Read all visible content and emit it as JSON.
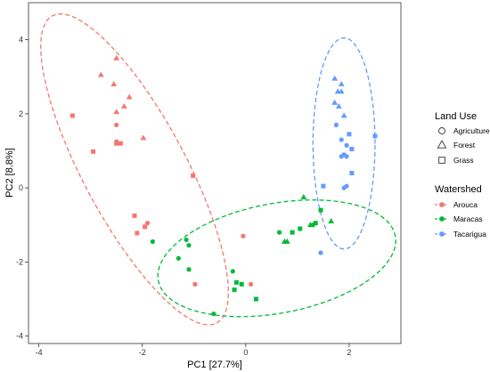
{
  "chart_data": {
    "type": "scatter",
    "title": "",
    "xlabel": "PC1   [27.7%]",
    "ylabel": "PC2   [8.8%]",
    "xlim": [
      -4.2,
      3.0
    ],
    "ylim": [
      -4.2,
      5.0
    ],
    "x_ticks": [
      -4,
      -2,
      0,
      2
    ],
    "y_ticks": [
      -4,
      -2,
      0,
      2,
      4
    ],
    "grid": false,
    "legend_position": "right",
    "legends": [
      {
        "title": "Land Use",
        "entries": [
          {
            "label": "Agriculture",
            "shape": "circle"
          },
          {
            "label": "Forest",
            "shape": "triangle"
          },
          {
            "label": "Grass",
            "shape": "square"
          }
        ]
      },
      {
        "title": "Watershed",
        "entries": [
          {
            "label": "Arouca",
            "color": "#F8766D"
          },
          {
            "label": "Maracas",
            "color": "#00BA38"
          },
          {
            "label": "Tacarigua",
            "color": "#619CFF"
          }
        ]
      }
    ],
    "series": [
      {
        "name": "Arouca",
        "color": "#F8766D",
        "points": [
          {
            "x": -2.5,
            "y": 3.5,
            "shape": "triangle"
          },
          {
            "x": -2.8,
            "y": 3.05,
            "shape": "triangle"
          },
          {
            "x": -2.55,
            "y": 2.8,
            "shape": "triangle"
          },
          {
            "x": -2.25,
            "y": 2.45,
            "shape": "triangle"
          },
          {
            "x": -2.35,
            "y": 2.2,
            "shape": "triangle"
          },
          {
            "x": -2.5,
            "y": 2.05,
            "shape": "triangle"
          },
          {
            "x": -1.98,
            "y": 1.35,
            "shape": "triangle"
          },
          {
            "x": -3.35,
            "y": 1.95,
            "shape": "square"
          },
          {
            "x": -2.5,
            "y": 1.2,
            "shape": "square"
          },
          {
            "x": -2.42,
            "y": 1.2,
            "shape": "square"
          },
          {
            "x": -2.95,
            "y": 0.98,
            "shape": "square"
          },
          {
            "x": -1.02,
            "y": 0.33,
            "shape": "square"
          },
          {
            "x": -2.15,
            "y": -0.75,
            "shape": "square"
          },
          {
            "x": -2.1,
            "y": -1.22,
            "shape": "square"
          },
          {
            "x": -1.95,
            "y": -1.05,
            "shape": "square"
          },
          {
            "x": -2.5,
            "y": 1.7,
            "shape": "circle"
          },
          {
            "x": -2.5,
            "y": 1.25,
            "shape": "circle"
          },
          {
            "x": -1.9,
            "y": -0.95,
            "shape": "circle"
          },
          {
            "x": -0.98,
            "y": -2.6,
            "shape": "circle"
          },
          {
            "x": -0.05,
            "y": -1.3,
            "shape": "circle"
          },
          {
            "x": 0.1,
            "y": -2.6,
            "shape": "circle"
          }
        ]
      },
      {
        "name": "Maracas",
        "color": "#00BA38",
        "points": [
          {
            "x": 1.12,
            "y": -0.25,
            "shape": "triangle"
          },
          {
            "x": 0.75,
            "y": -1.45,
            "shape": "triangle"
          },
          {
            "x": 0.8,
            "y": -1.45,
            "shape": "triangle"
          },
          {
            "x": 1.25,
            "y": -1.0,
            "shape": "triangle"
          },
          {
            "x": 1.65,
            "y": -0.9,
            "shape": "triangle"
          },
          {
            "x": 0.9,
            "y": -1.2,
            "shape": "square"
          },
          {
            "x": 1.05,
            "y": -1.1,
            "shape": "square"
          },
          {
            "x": 1.35,
            "y": -0.95,
            "shape": "square"
          },
          {
            "x": 1.45,
            "y": -0.6,
            "shape": "square"
          },
          {
            "x": -0.18,
            "y": -2.55,
            "shape": "square"
          },
          {
            "x": -0.22,
            "y": -2.75,
            "shape": "square"
          },
          {
            "x": -0.08,
            "y": -2.6,
            "shape": "square"
          },
          {
            "x": 0.2,
            "y": -3.0,
            "shape": "square"
          },
          {
            "x": -1.8,
            "y": -1.45,
            "shape": "circle"
          },
          {
            "x": -1.15,
            "y": -1.4,
            "shape": "circle"
          },
          {
            "x": -1.1,
            "y": -1.55,
            "shape": "circle"
          },
          {
            "x": -1.3,
            "y": -1.9,
            "shape": "circle"
          },
          {
            "x": -1.1,
            "y": -2.2,
            "shape": "circle"
          },
          {
            "x": -0.25,
            "y": -2.25,
            "shape": "circle"
          },
          {
            "x": -0.62,
            "y": -3.4,
            "shape": "circle"
          },
          {
            "x": 0.65,
            "y": -1.2,
            "shape": "circle"
          },
          {
            "x": 1.3,
            "y": -1.0,
            "shape": "circle"
          }
        ]
      },
      {
        "name": "Tacarigua",
        "color": "#619CFF",
        "points": [
          {
            "x": 1.72,
            "y": 2.95,
            "shape": "triangle"
          },
          {
            "x": 1.85,
            "y": 2.8,
            "shape": "triangle"
          },
          {
            "x": 1.78,
            "y": 2.6,
            "shape": "triangle"
          },
          {
            "x": 1.85,
            "y": 2.6,
            "shape": "triangle"
          },
          {
            "x": 1.8,
            "y": 2.2,
            "shape": "triangle"
          },
          {
            "x": 1.72,
            "y": 2.3,
            "shape": "triangle"
          },
          {
            "x": 1.9,
            "y": 1.95,
            "shape": "triangle"
          },
          {
            "x": 2.5,
            "y": 1.4,
            "shape": "square"
          },
          {
            "x": 2.0,
            "y": 1.45,
            "shape": "square"
          },
          {
            "x": 2.05,
            "y": 1.05,
            "shape": "square"
          },
          {
            "x": 2.05,
            "y": 0.4,
            "shape": "square"
          },
          {
            "x": 1.5,
            "y": 0.05,
            "shape": "square"
          },
          {
            "x": 1.75,
            "y": 1.7,
            "shape": "circle"
          },
          {
            "x": 1.85,
            "y": 1.3,
            "shape": "circle"
          },
          {
            "x": 1.95,
            "y": 1.15,
            "shape": "circle"
          },
          {
            "x": 1.85,
            "y": 0.85,
            "shape": "circle"
          },
          {
            "x": 1.9,
            "y": 0.9,
            "shape": "circle"
          },
          {
            "x": 1.95,
            "y": 0.85,
            "shape": "circle"
          },
          {
            "x": 1.95,
            "y": 0.05,
            "shape": "circle"
          },
          {
            "x": 1.9,
            "y": 0.0,
            "shape": "circle"
          },
          {
            "x": 1.45,
            "y": -1.75,
            "shape": "circle"
          }
        ]
      }
    ],
    "ellipses": [
      {
        "series": "Arouca",
        "color": "#F8766D",
        "center": [
          -2.15,
          0.5
        ],
        "semi_axes": [
          1.05,
          4.45
        ],
        "rotation_deg": 20
      },
      {
        "series": "Maracas",
        "color": "#00BA38",
        "center": [
          0.6,
          -1.9
        ],
        "semi_axes": [
          2.38,
          1.45
        ],
        "rotation_deg": 19
      },
      {
        "series": "Tacarigua",
        "color": "#619CFF",
        "center": [
          1.9,
          1.2
        ],
        "semi_axes": [
          0.6,
          2.85
        ],
        "rotation_deg": 0
      }
    ]
  }
}
